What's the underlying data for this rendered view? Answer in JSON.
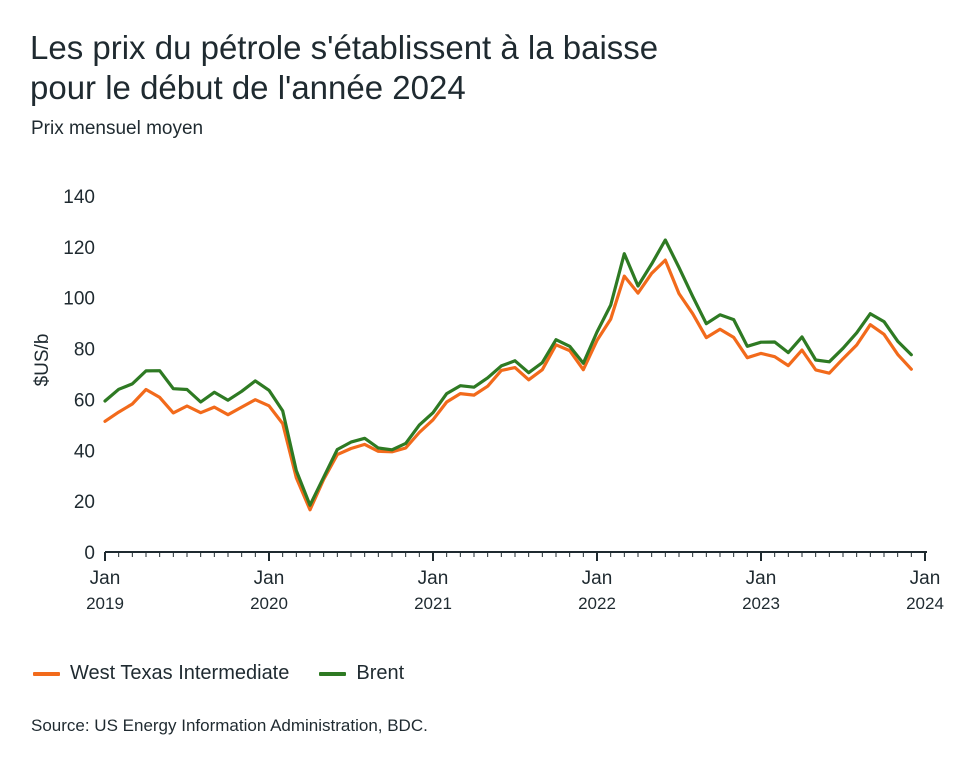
{
  "chart_data": {
    "type": "line",
    "title_lines": [
      "Les prix du pétrole s'établissent à la baisse",
      "pour le début de l'année 2024"
    ],
    "subtitle": "Prix mensuel moyen",
    "ylabel": "$US/b",
    "xlabel": "",
    "ylim": [
      0,
      140
    ],
    "yticks": [
      0,
      20,
      40,
      60,
      80,
      100,
      120,
      140
    ],
    "x_range": [
      0,
      60
    ],
    "xticks": [
      {
        "pos": 0,
        "month": "Jan",
        "year": "2019"
      },
      {
        "pos": 12,
        "month": "Jan",
        "year": "2020"
      },
      {
        "pos": 24,
        "month": "Jan",
        "year": "2021"
      },
      {
        "pos": 36,
        "month": "Jan",
        "year": "2022"
      },
      {
        "pos": 48,
        "month": "Jan",
        "year": "2023"
      },
      {
        "pos": 60,
        "month": "Jan",
        "year": "2024"
      }
    ],
    "grid": false,
    "legend_position": "bottom-left",
    "series": [
      {
        "name": "West Texas Intermediate",
        "color": "#f26a1b",
        "values": [
          51.4,
          55.0,
          58.2,
          63.9,
          60.8,
          54.7,
          57.4,
          54.8,
          57.0,
          54.0,
          57.0,
          59.9,
          57.5,
          50.5,
          29.2,
          16.6,
          28.6,
          38.3,
          40.7,
          42.3,
          39.6,
          39.4,
          40.9,
          47.0,
          52.0,
          59.0,
          62.3,
          61.7,
          65.2,
          71.4,
          72.5,
          67.7,
          71.7,
          81.5,
          79.2,
          71.7,
          83.2,
          91.6,
          108.5,
          101.8,
          109.6,
          114.8,
          101.6,
          93.7,
          84.3,
          87.6,
          84.4,
          76.4,
          78.1,
          76.8,
          73.3,
          79.4,
          71.6,
          70.3,
          76.0,
          81.4,
          89.4,
          85.6,
          77.7,
          71.9
        ]
      },
      {
        "name": "Brent",
        "color": "#2e7a23",
        "values": [
          59.4,
          64.0,
          66.1,
          71.2,
          71.3,
          64.2,
          63.9,
          59.0,
          62.8,
          59.7,
          63.2,
          67.3,
          63.6,
          55.5,
          32.0,
          18.4,
          29.4,
          40.3,
          43.2,
          44.7,
          40.9,
          40.2,
          42.7,
          49.9,
          54.8,
          62.3,
          65.4,
          64.8,
          68.5,
          73.2,
          75.2,
          70.5,
          74.5,
          83.5,
          80.9,
          74.2,
          86.5,
          97.1,
          117.3,
          104.6,
          113.3,
          122.7,
          111.9,
          100.5,
          89.8,
          93.3,
          91.4,
          80.9,
          82.5,
          82.6,
          78.4,
          84.6,
          75.5,
          74.8,
          80.1,
          86.2,
          93.7,
          90.6,
          82.9,
          77.6
        ]
      }
    ]
  },
  "legend": {
    "wti_label": "West Texas Intermediate",
    "brent_label": "Brent"
  },
  "source": "Source: US Energy Information Administration, BDC."
}
